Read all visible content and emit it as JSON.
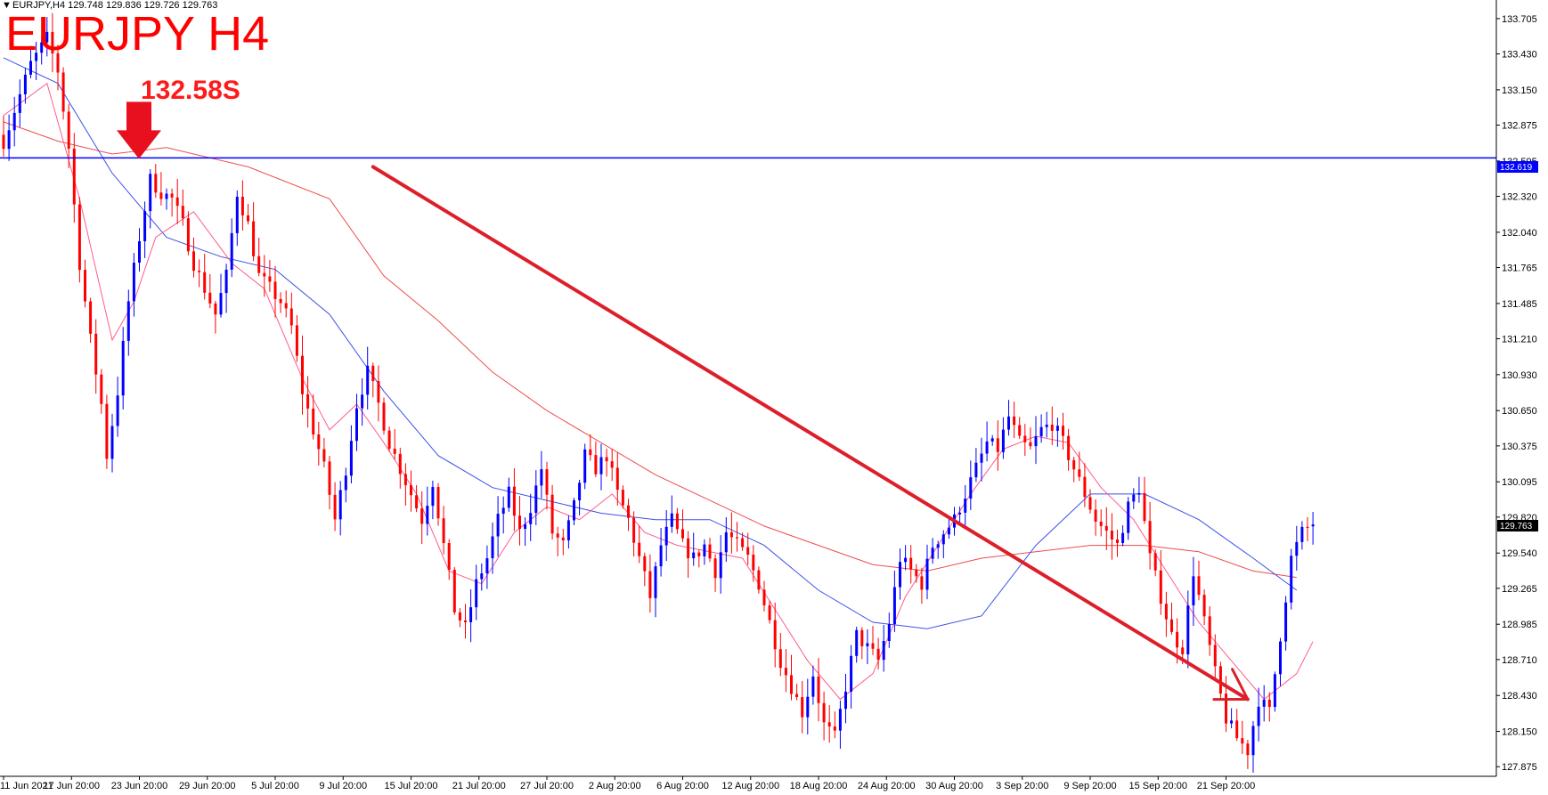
{
  "header": {
    "triangle": "▼",
    "info": "EURJPY,H4  129.748 129.836 129.726 129.763"
  },
  "annotations": {
    "title": "EURJPY H4",
    "level": "132.58S"
  },
  "colors": {
    "bull": "#0000ff",
    "bear": "#ff0000",
    "ma_fast": "#ff5b8c",
    "ma_mid": "#3b52e8",
    "ma_slow": "#ee4d4d",
    "hline": "#0000ff",
    "arrow": "#e8101e",
    "trend": "#dd1f2a"
  },
  "price_tags": {
    "level": "132.619",
    "current": "129.763"
  },
  "chart_data": {
    "type": "candlestick",
    "y_ticks": [
      "133.705",
      "133.430",
      "133.150",
      "132.875",
      "132.595",
      "132.320",
      "132.040",
      "131.765",
      "131.485",
      "131.210",
      "130.930",
      "130.650",
      "130.375",
      "130.095",
      "129.820",
      "129.540",
      "129.265",
      "128.985",
      "128.710",
      "128.430",
      "128.150",
      "127.875"
    ],
    "x_ticks": [
      "11 Jun 2021",
      "17 Jun 20:00",
      "23 Jun 20:00",
      "29 Jun 20:00",
      "5 Jul 20:00",
      "9 Jul 20:00",
      "15 Jul 20:00",
      "21 Jul 20:00",
      "27 Jul 20:00",
      "2 Aug 20:00",
      "6 Aug 20:00",
      "12 Aug 20:00",
      "18 Aug 20:00",
      "24 Aug 20:00",
      "30 Aug 20:00",
      "3 Sep 20:00",
      "9 Sep 20:00",
      "15 Sep 20:00",
      "21 Sep 20:00"
    ],
    "ylim": [
      127.8,
      133.85
    ],
    "last": {
      "open": 129.748,
      "high": 129.836,
      "low": 129.726,
      "close": 129.763
    },
    "horizontal_level": 132.619,
    "close_path": [
      [
        0,
        132.75
      ],
      [
        5,
        133.35
      ],
      [
        8,
        133.55
      ],
      [
        10,
        133.3
      ],
      [
        12,
        132.7
      ],
      [
        14,
        131.8
      ],
      [
        16,
        131.2
      ],
      [
        18,
        130.7
      ],
      [
        19,
        130.3
      ],
      [
        21,
        130.8
      ],
      [
        23,
        131.5
      ],
      [
        25,
        132.0
      ],
      [
        27,
        132.45
      ],
      [
        29,
        132.35
      ],
      [
        31,
        132.3
      ],
      [
        33,
        132.1
      ],
      [
        35,
        131.8
      ],
      [
        37,
        131.6
      ],
      [
        39,
        131.4
      ],
      [
        41,
        131.7
      ],
      [
        43,
        132.35
      ],
      [
        45,
        132.1
      ],
      [
        47,
        131.7
      ],
      [
        49,
        131.6
      ],
      [
        51,
        131.5
      ],
      [
        53,
        131.3
      ],
      [
        55,
        130.8
      ],
      [
        57,
        130.5
      ],
      [
        59,
        130.2
      ],
      [
        61,
        129.8
      ],
      [
        63,
        130.2
      ],
      [
        65,
        130.7
      ],
      [
        67,
        130.95
      ],
      [
        69,
        130.7
      ],
      [
        71,
        130.4
      ],
      [
        73,
        130.2
      ],
      [
        75,
        130.0
      ],
      [
        77,
        129.8
      ],
      [
        79,
        130.1
      ],
      [
        81,
        129.6
      ],
      [
        83,
        129.1
      ],
      [
        85,
        128.95
      ],
      [
        87,
        129.3
      ],
      [
        89,
        129.5
      ],
      [
        91,
        129.8
      ],
      [
        93,
        130.0
      ],
      [
        95,
        129.7
      ],
      [
        97,
        129.9
      ],
      [
        99,
        130.2
      ],
      [
        101,
        129.7
      ],
      [
        103,
        129.6
      ],
      [
        105,
        129.9
      ],
      [
        107,
        130.3
      ],
      [
        109,
        130.2
      ],
      [
        111,
        130.3
      ],
      [
        113,
        130.0
      ],
      [
        115,
        129.8
      ],
      [
        117,
        129.5
      ],
      [
        119,
        129.2
      ],
      [
        121,
        129.6
      ],
      [
        123,
        129.8
      ],
      [
        125,
        129.6
      ],
      [
        127,
        129.5
      ],
      [
        129,
        129.6
      ],
      [
        131,
        129.4
      ],
      [
        133,
        129.7
      ],
      [
        135,
        129.6
      ],
      [
        137,
        129.5
      ],
      [
        139,
        129.3
      ],
      [
        141,
        129.0
      ],
      [
        143,
        128.7
      ],
      [
        145,
        128.5
      ],
      [
        147,
        128.3
      ],
      [
        149,
        128.6
      ],
      [
        151,
        128.2
      ],
      [
        153,
        128.1
      ],
      [
        155,
        128.5
      ],
      [
        157,
        128.9
      ],
      [
        159,
        128.8
      ],
      [
        161,
        128.7
      ],
      [
        163,
        129.0
      ],
      [
        165,
        129.5
      ],
      [
        167,
        129.4
      ],
      [
        169,
        129.3
      ],
      [
        171,
        129.6
      ],
      [
        173,
        129.7
      ],
      [
        175,
        129.8
      ],
      [
        177,
        130.0
      ],
      [
        179,
        130.2
      ],
      [
        181,
        130.4
      ],
      [
        183,
        130.35
      ],
      [
        185,
        130.6
      ],
      [
        187,
        130.4
      ],
      [
        189,
        130.35
      ],
      [
        191,
        130.5
      ],
      [
        193,
        130.55
      ],
      [
        195,
        130.4
      ],
      [
        197,
        130.2
      ],
      [
        199,
        130.0
      ],
      [
        201,
        129.8
      ],
      [
        203,
        129.7
      ],
      [
        205,
        129.6
      ],
      [
        207,
        129.9
      ],
      [
        209,
        130.05
      ],
      [
        211,
        129.5
      ],
      [
        213,
        129.2
      ],
      [
        215,
        128.9
      ],
      [
        217,
        128.8
      ],
      [
        219,
        129.4
      ],
      [
        221,
        129.0
      ],
      [
        223,
        128.6
      ],
      [
        225,
        128.25
      ],
      [
        227,
        128.1
      ],
      [
        229,
        128.0
      ],
      [
        231,
        128.4
      ],
      [
        233,
        128.3
      ],
      [
        235,
        128.9
      ],
      [
        237,
        129.5
      ],
      [
        239,
        129.7
      ],
      [
        241,
        129.76
      ]
    ],
    "ma_fast": [
      [
        0,
        132.95
      ],
      [
        8,
        133.2
      ],
      [
        14,
        132.3
      ],
      [
        20,
        131.2
      ],
      [
        24,
        131.5
      ],
      [
        28,
        132.0
      ],
      [
        35,
        132.2
      ],
      [
        42,
        131.8
      ],
      [
        48,
        131.6
      ],
      [
        55,
        130.9
      ],
      [
        60,
        130.5
      ],
      [
        65,
        130.7
      ],
      [
        70,
        130.4
      ],
      [
        76,
        130.0
      ],
      [
        82,
        129.4
      ],
      [
        88,
        129.3
      ],
      [
        94,
        129.7
      ],
      [
        100,
        129.9
      ],
      [
        106,
        129.8
      ],
      [
        112,
        130.0
      ],
      [
        118,
        129.7
      ],
      [
        124,
        129.6
      ],
      [
        130,
        129.55
      ],
      [
        136,
        129.5
      ],
      [
        142,
        129.1
      ],
      [
        148,
        128.7
      ],
      [
        154,
        128.4
      ],
      [
        160,
        128.6
      ],
      [
        166,
        129.2
      ],
      [
        172,
        129.6
      ],
      [
        178,
        130.0
      ],
      [
        184,
        130.35
      ],
      [
        190,
        130.45
      ],
      [
        196,
        130.4
      ],
      [
        202,
        130.05
      ],
      [
        208,
        129.8
      ],
      [
        214,
        129.4
      ],
      [
        220,
        129.0
      ],
      [
        226,
        128.7
      ],
      [
        232,
        128.4
      ],
      [
        238,
        128.6
      ],
      [
        241,
        128.85
      ]
    ],
    "ma_mid": [
      [
        0,
        133.4
      ],
      [
        10,
        133.2
      ],
      [
        20,
        132.5
      ],
      [
        30,
        132.0
      ],
      [
        40,
        131.85
      ],
      [
        50,
        131.75
      ],
      [
        60,
        131.4
      ],
      [
        70,
        130.8
      ],
      [
        80,
        130.3
      ],
      [
        90,
        130.05
      ],
      [
        100,
        129.95
      ],
      [
        110,
        129.85
      ],
      [
        120,
        129.8
      ],
      [
        130,
        129.8
      ],
      [
        140,
        129.6
      ],
      [
        150,
        129.25
      ],
      [
        160,
        129.0
      ],
      [
        170,
        128.95
      ],
      [
        180,
        129.05
      ],
      [
        190,
        129.6
      ],
      [
        200,
        130.0
      ],
      [
        210,
        130.0
      ],
      [
        220,
        129.8
      ],
      [
        230,
        129.5
      ],
      [
        238,
        129.25
      ]
    ],
    "ma_slow": [
      [
        0,
        132.9
      ],
      [
        10,
        132.75
      ],
      [
        20,
        132.65
      ],
      [
        30,
        132.7
      ],
      [
        45,
        132.55
      ],
      [
        60,
        132.3
      ],
      [
        70,
        131.7
      ],
      [
        80,
        131.35
      ],
      [
        90,
        130.95
      ],
      [
        100,
        130.65
      ],
      [
        110,
        130.4
      ],
      [
        120,
        130.15
      ],
      [
        130,
        129.95
      ],
      [
        140,
        129.75
      ],
      [
        150,
        129.6
      ],
      [
        160,
        129.45
      ],
      [
        170,
        129.4
      ],
      [
        180,
        129.5
      ],
      [
        190,
        129.55
      ],
      [
        200,
        129.6
      ],
      [
        210,
        129.6
      ],
      [
        220,
        129.55
      ],
      [
        230,
        129.4
      ],
      [
        238,
        129.35
      ]
    ],
    "trend_line": [
      [
        68,
        132.55
      ],
      [
        229,
        128.4
      ]
    ]
  }
}
